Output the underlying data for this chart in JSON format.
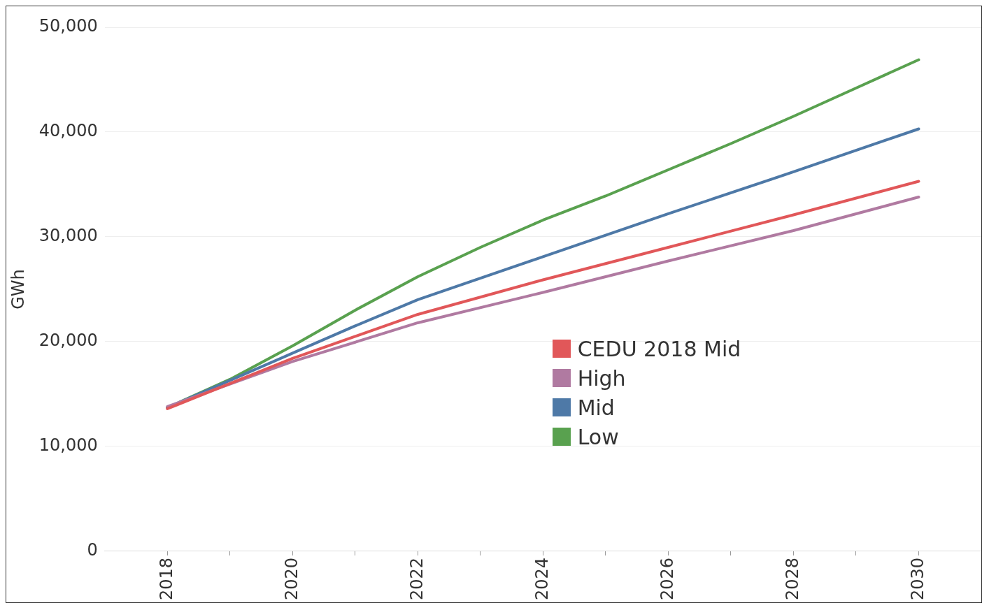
{
  "chart_data": {
    "type": "line",
    "ylabel": "GWh",
    "xlim": [
      2017,
      2031
    ],
    "xticks": [
      2018,
      {
        "value": 2019,
        "label": null
      },
      2020,
      {
        "value": 2021,
        "label": null
      },
      2022,
      {
        "value": 2023,
        "label": null
      },
      2024,
      {
        "value": 2025,
        "label": null
      },
      2026,
      {
        "value": 2027,
        "label": null
      },
      2028,
      {
        "value": 2029,
        "label": null
      },
      2030
    ],
    "ylim": [
      0,
      50000
    ],
    "yticks": [
      {
        "value": 0,
        "label": "0"
      },
      {
        "value": 10000,
        "label": "10,000"
      },
      {
        "value": 20000,
        "label": "20,000"
      },
      {
        "value": 30000,
        "label": "30,000"
      },
      {
        "value": 40000,
        "label": "40,000"
      },
      {
        "value": 50000,
        "label": "50,000"
      }
    ],
    "grid": "y",
    "legend": "center",
    "line_style": "solid",
    "marker": "none",
    "series": [
      {
        "name": "CEDU 2018 Mid",
        "color": "#e15759",
        "x": [
          2018,
          2020,
          2022,
          2024,
          2026,
          2028,
          2030
        ],
        "values": [
          13600,
          18400,
          22600,
          25900,
          29000,
          32100,
          35300
        ]
      },
      {
        "name": "High",
        "color": "#b07aa1",
        "x": [
          2018,
          2020,
          2022,
          2024,
          2026,
          2028,
          2030
        ],
        "values": [
          13800,
          18100,
          21800,
          24700,
          27700,
          30600,
          33800
        ]
      },
      {
        "name": "Mid",
        "color": "#4e79a7",
        "x": [
          2018,
          2020,
          2021,
          2022,
          2024,
          2026,
          2028,
          2030
        ],
        "values": [
          13700,
          18900,
          21500,
          24000,
          28100,
          32200,
          36200,
          40300
        ]
      },
      {
        "name": "Low",
        "color": "#59a14f",
        "x": [
          2018,
          2019,
          2020,
          2021,
          2022,
          2023,
          2024,
          2025,
          2026,
          2027,
          2028,
          2029,
          2030
        ],
        "values": [
          13700,
          16400,
          19600,
          23000,
          26200,
          29000,
          31600,
          33900,
          36400,
          38900,
          41500,
          44200,
          46900
        ]
      }
    ]
  }
}
